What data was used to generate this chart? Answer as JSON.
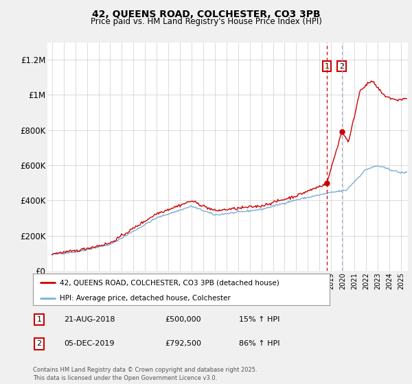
{
  "title": "42, QUEENS ROAD, COLCHESTER, CO3 3PB",
  "subtitle": "Price paid vs. HM Land Registry's House Price Index (HPI)",
  "legend_label_red": "42, QUEENS ROAD, COLCHESTER, CO3 3PB (detached house)",
  "legend_label_blue": "HPI: Average price, detached house, Colchester",
  "footnote": "Contains HM Land Registry data © Crown copyright and database right 2025.\nThis data is licensed under the Open Government Licence v3.0.",
  "annotation1_label": "1",
  "annotation1_date": "21-AUG-2018",
  "annotation1_price": "£500,000",
  "annotation1_hpi": "15% ↑ HPI",
  "annotation2_label": "2",
  "annotation2_date": "05-DEC-2019",
  "annotation2_price": "£792,500",
  "annotation2_hpi": "86% ↑ HPI",
  "color_red": "#cc0000",
  "color_blue": "#7bafd4",
  "color_vline1": "#cc0000",
  "color_vline2": "#aaaacc",
  "ylim_max": 1300000,
  "yticks": [
    0,
    200000,
    400000,
    600000,
    800000,
    1000000,
    1200000
  ],
  "ytick_labels": [
    "£0",
    "£200K",
    "£400K",
    "£600K",
    "£800K",
    "£1M",
    "£1.2M"
  ],
  "sale1_year": 2018.64,
  "sale1_price": 500000,
  "sale2_year": 2019.92,
  "sale2_price": 792500,
  "bg_color": "#f0f0f0",
  "plot_bg_color": "#ffffff"
}
